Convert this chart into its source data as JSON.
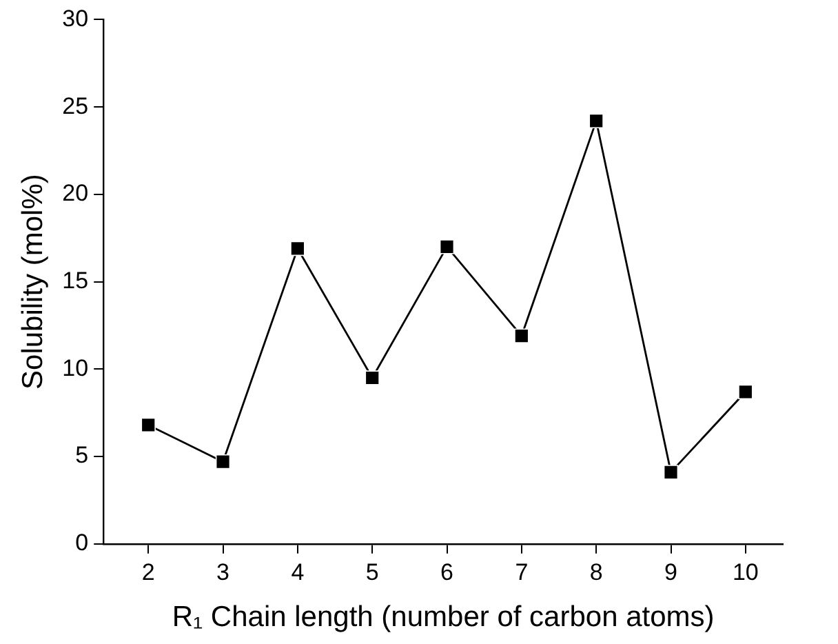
{
  "chart_data": {
    "type": "line",
    "xlabel": "R₁ Chain length (number of carbon atoms)",
    "ylabel": "Solubility (mol%)",
    "x": [
      2,
      3,
      4,
      5,
      6,
      7,
      8,
      9,
      10
    ],
    "series": [
      {
        "color": "#000000",
        "values": [
          6.8,
          4.7,
          16.9,
          9.5,
          17.0,
          11.9,
          24.2,
          4.1,
          8.7
        ]
      }
    ],
    "xlim": [
      1.4,
      10.5
    ],
    "xticks": [
      2,
      3,
      4,
      5,
      6,
      7,
      8,
      9,
      10
    ],
    "ylim": [
      0,
      30
    ],
    "yticks": [
      0,
      5,
      10,
      15,
      20,
      25,
      30
    ],
    "grid": false,
    "legend": false,
    "marker": "square",
    "line_style": "solid"
  }
}
